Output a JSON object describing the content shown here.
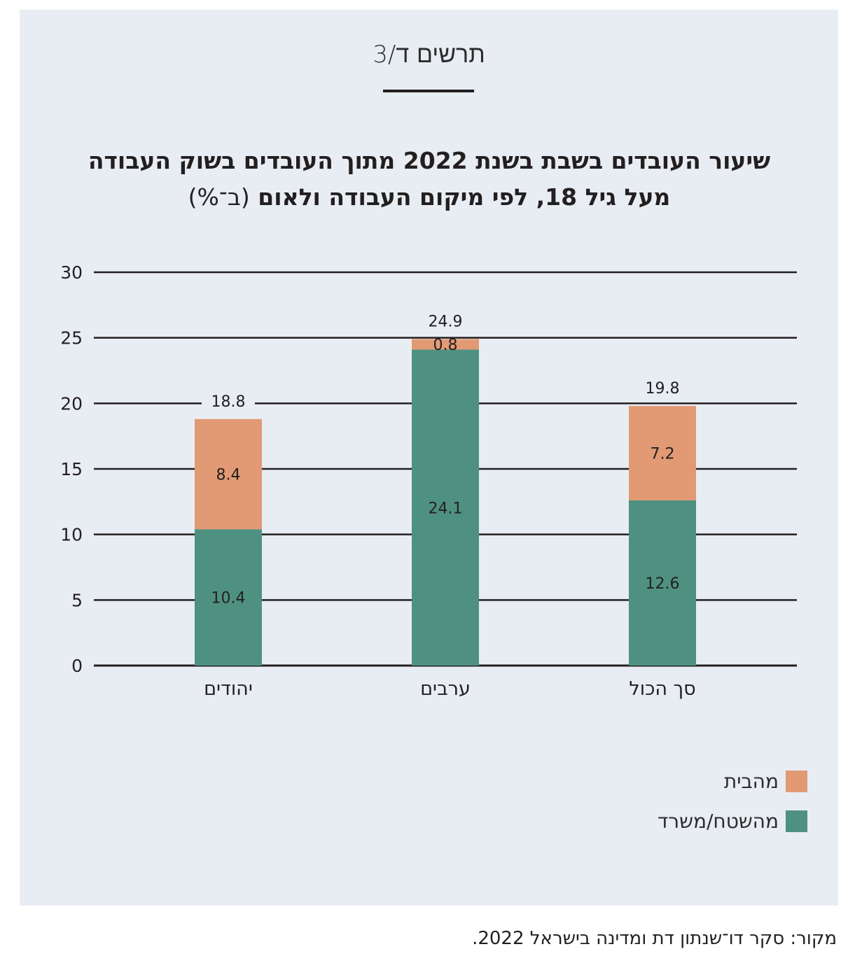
{
  "figure_label": "תרשים ד/3",
  "title_line1": "שיעור העובדים בשבת בשנת 2022 מתוך העובדים בשוק העבודה",
  "title_line2": "מעל גיל 18, לפי מיקום העבודה ולאום",
  "title_unit": "(ב־%)",
  "source": "מקור: סקר דו־שנתון דת ומדינה בישראל 2022.",
  "colors": {
    "home": "#e29a74",
    "office": "#4f9180",
    "background": "#e8edf3"
  },
  "chart_data": {
    "type": "bar",
    "stacked": true,
    "categories": [
      "יהודים",
      "ערבים",
      "סך הכול"
    ],
    "series": [
      {
        "name": "מהשטח/משרד",
        "values": [
          10.4,
          24.1,
          12.6
        ]
      },
      {
        "name": "מהבית",
        "values": [
          8.4,
          0.8,
          7.2
        ]
      }
    ],
    "totals": [
      18.8,
      24.9,
      19.8
    ],
    "ylim": [
      0,
      30
    ],
    "yticks": [
      0,
      5,
      10,
      15,
      20,
      25,
      30
    ],
    "grid": true,
    "legend_position": "bottom-right"
  }
}
